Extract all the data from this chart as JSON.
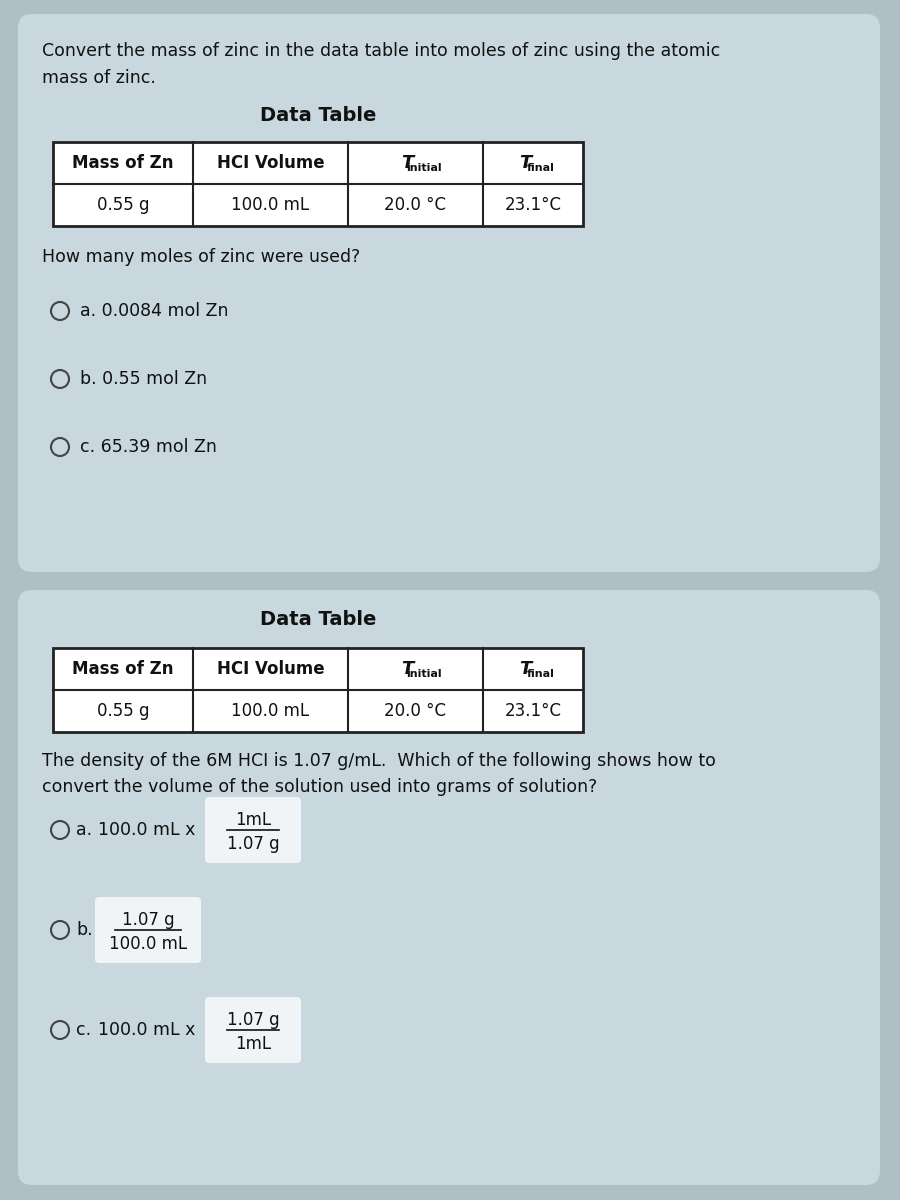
{
  "bg_color": "#b0bec5",
  "panel_bg": "#c8d8de",
  "panel_border": "#a0b0b8",
  "table_bg": "#ffffff",
  "table_border": "#333333",
  "text_color": "#111111",
  "intro_text_line1": "Convert the mass of zinc in the data table into moles of zinc using the atomic",
  "intro_text_line2": "mass of zinc.",
  "data_table_title": "Data Table",
  "table_row": [
    "0.55 g",
    "100.0 mL",
    "20.0 °C",
    "23.1°C"
  ],
  "question1": "How many moles of zinc were used?",
  "options1": [
    "a. 0.0084 mol Zn",
    "b. 0.55 mol Zn",
    "c. 65.39 mol Zn"
  ],
  "question2_line1": "The density of the 6M HCI is 1.07 g/mL.  Which of the following shows how to",
  "question2_line2": "convert the volume of the solution used into grams of solution?",
  "opt_a_prefix": "100.0 mL x",
  "opt_a_num": "1mL",
  "opt_a_den": "1.07 g",
  "opt_b_num": "1.07 g",
  "opt_b_den": "100.0 mL",
  "opt_c_prefix": "100.0 mL x",
  "opt_c_num": "1.07 g",
  "opt_c_den": "1mL"
}
